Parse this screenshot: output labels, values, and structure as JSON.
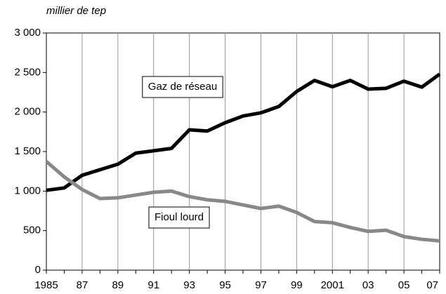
{
  "chart_data": {
    "type": "line",
    "y_axis_label": "millier de tep",
    "categories": [
      "1985",
      null,
      "87",
      null,
      "89",
      null,
      "91",
      null,
      "93",
      null,
      "95",
      null,
      "97",
      null,
      "99",
      null,
      "2001",
      null,
      "03",
      null,
      "05",
      null,
      "07"
    ],
    "series": [
      {
        "name": "Gaz de réseau",
        "color": "#000000",
        "values": [
          1010,
          1040,
          1200,
          1270,
          1340,
          1480,
          1510,
          1540,
          1775,
          1760,
          1865,
          1950,
          1990,
          2070,
          2260,
          2400,
          2320,
          2400,
          2290,
          2300,
          2390,
          2315,
          2480
        ]
      },
      {
        "name": "Fioul lourd",
        "color": "#888888",
        "values": [
          1375,
          1180,
          1020,
          905,
          915,
          950,
          985,
          1000,
          930,
          890,
          870,
          825,
          780,
          810,
          730,
          615,
          600,
          540,
          490,
          505,
          425,
          390,
          370
        ]
      }
    ],
    "ylim": [
      0,
      3000
    ],
    "yticks": [
      0,
      500,
      {
        "value": 1000,
        "label": "1 000"
      },
      {
        "value": 1500,
        "label": "1 500"
      },
      {
        "value": 2000,
        "label": "2 000"
      },
      {
        "value": 2500,
        "label": "2 500"
      },
      {
        "value": 3000,
        "label": "3 000"
      }
    ],
    "grid": "x"
  }
}
